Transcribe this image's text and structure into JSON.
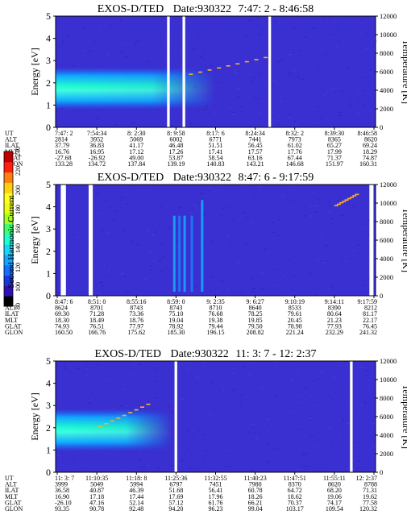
{
  "colors": {
    "background": "#3a2fd0",
    "noise": "#2a20b8",
    "text": "#000000",
    "gap": "#ffffff",
    "colorbar": [
      "#000000",
      "#3010b0",
      "#1838e0",
      "#1470ff",
      "#10a8ff",
      "#10d8ff",
      "#20ffd0",
      "#40ff70",
      "#a0ff20",
      "#e8ff10",
      "#ffff20",
      "#ffd010",
      "#ff8010",
      "#ff2010",
      "#c00000"
    ]
  },
  "colorbar": {
    "label": "Second Harmonic Current",
    "ticks": [
      "80",
      "100",
      "120",
      "140",
      "160",
      "180",
      "200",
      "220",
      "240"
    ]
  },
  "chart_data": [
    {
      "type": "heatmap",
      "title": "EXOS-D/TED",
      "date": "Date:930322",
      "time_range": "7:47: 2 - 8:46:58",
      "ylabel": "Energy [eV]",
      "y2label": "Temperature [K]",
      "ylim": [
        0,
        5
      ],
      "y2lim": [
        0,
        12000
      ],
      "yticks": [
        "0",
        "1",
        "2",
        "3",
        "4",
        "5"
      ],
      "y2ticks": [
        "0",
        "2000",
        "4000",
        "6000",
        "8000",
        "10000",
        "12000"
      ],
      "x_range_min": [
        0,
        60
      ],
      "gaps_min": [
        [
          20.9,
          21.4
        ],
        [
          23.8,
          24.3
        ],
        [
          39.9,
          40.4
        ]
      ],
      "beam": {
        "energy_center_ev": 1.75,
        "energy_halfwidth_ev": 0.6,
        "extent_min": [
          0,
          30
        ]
      },
      "temperature_trace": {
        "x_min": [
          25,
          39
        ],
        "temp_k": [
          5800,
          7600
        ]
      },
      "table": {
        "row_labels": [
          "UT",
          "ALT",
          "ILAT",
          "MLT",
          "GLAT",
          "GLON"
        ],
        "columns": [
          [
            "7:47: 2",
            "2814",
            "37.79",
            "16.76",
            "-27.68",
            "133.28"
          ],
          [
            "7:54:34",
            "3952",
            "36.83",
            "16.95",
            "-26.92",
            "134.72"
          ],
          [
            "8: 2:30",
            "5069",
            "41.17",
            "17.12",
            "49.00",
            "137.84"
          ],
          [
            "8: 9:58",
            "6002",
            "46.48",
            "17.26",
            "53.87",
            "139.19"
          ],
          [
            "8:17: 6",
            "6771",
            "51.51",
            "17.41",
            "58.54",
            "140.83"
          ],
          [
            "8:24:34",
            "7441",
            "56.45",
            "17.57",
            "63.16",
            "143.21"
          ],
          [
            "8:32: 2",
            "7973",
            "61.02",
            "17.76",
            "67.44",
            "146.68"
          ],
          [
            "8:39:30",
            "8365",
            "65.27",
            "17.99",
            "71.37",
            "151.97"
          ],
          [
            "8:46:58",
            "8620",
            "69.24",
            "18.29",
            "74.87",
            "160.31"
          ]
        ]
      }
    },
    {
      "type": "heatmap",
      "title": "EXOS-D/TED",
      "date": "Date:930322",
      "time_range": "8:47: 6 - 9:17:59",
      "ylabel": "Energy [eV]",
      "y2label": "Temperature [K]",
      "ylim": [
        0,
        5
      ],
      "y2lim": [
        0,
        12000
      ],
      "yticks": [
        "0",
        "1",
        "2",
        "3",
        "4",
        "5"
      ],
      "y2ticks": [
        "0",
        "2000",
        "4000",
        "6000",
        "8000",
        "10000",
        "12000"
      ],
      "x_range_min": [
        0,
        31
      ],
      "gaps_min": [
        [
          0.5,
          1.0
        ],
        [
          3.2,
          3.6
        ],
        [
          30.4,
          30.8
        ]
      ],
      "bright_columns_min": [
        11.5,
        12.0,
        12.5,
        13.2,
        14.2
      ],
      "temperature_trace": {
        "x_min": [
          27,
          29
        ],
        "temp_k": [
          9800,
          11000
        ]
      },
      "table": {
        "row_labels": [
          "UT",
          "ALT",
          "ILAT",
          "MLT",
          "GLAT",
          "GLON"
        ],
        "columns": [
          [
            "8:47: 6",
            "8624",
            "69.30",
            "18.30",
            "74.93",
            "160.50"
          ],
          [
            "8:51: 0",
            "8701",
            "71.28",
            "18.49",
            "76.51",
            "166.76"
          ],
          [
            "8:55:16",
            "8743",
            "73.36",
            "18.76",
            "77.97",
            "175.62"
          ],
          [
            "8:59: 0",
            "8743",
            "75.10",
            "19.04",
            "78.92",
            "185.30"
          ],
          [
            "9: 2:35",
            "8710",
            "76.68",
            "19.38",
            "79.44",
            "196.15"
          ],
          [
            "9: 6:27",
            "8640",
            "78.25",
            "19.85",
            "79.50",
            "208.82"
          ],
          [
            "9:10:19",
            "8533",
            "79.61",
            "20.45",
            "78.98",
            "221.24"
          ],
          [
            "9:14:11",
            "8390",
            "80.64",
            "21.23",
            "77.93",
            "232.29"
          ],
          [
            "9:17:59",
            "8212",
            "81.17",
            "22.17",
            "76.45",
            "241.32"
          ]
        ]
      }
    },
    {
      "type": "heatmap",
      "title": "EXOS-D/TED",
      "date": "Date:930322",
      "time_range": "11: 3: 7 - 12: 2:37",
      "ylabel": "Energy [eV]",
      "y2label": "Temperature [K]",
      "ylim": [
        0,
        5
      ],
      "y2lim": [
        0,
        12000
      ],
      "yticks": [
        "0",
        "1",
        "2",
        "3",
        "4",
        "5"
      ],
      "y2ticks": [
        "0",
        "2000",
        "4000",
        "6000",
        "8000",
        "10000",
        "12000"
      ],
      "x_range_min": [
        0,
        60
      ],
      "gaps_min": [
        [
          22.3,
          22.8
        ],
        [
          55.2,
          55.7
        ]
      ],
      "beam": {
        "energy_center_ev": 1.9,
        "energy_halfwidth_ev": 0.6,
        "extent_min": [
          0,
          22
        ]
      },
      "temperature_trace": {
        "x_min": [
          8,
          17
        ],
        "temp_k": [
          5000,
          7400
        ]
      },
      "table": {
        "row_labels": [
          "UT",
          "ALT",
          "ILAT",
          "MLT",
          "GLAT",
          "GLON"
        ],
        "columns": [
          [
            "11: 3: 7",
            "3999",
            "36.58",
            "16.90",
            "-26.10",
            "93.35"
          ],
          [
            "11:10:35",
            "5049",
            "40.87",
            "17.18",
            "47.16",
            "90.78"
          ],
          [
            "11:18: 8",
            "5994",
            "46.39",
            "17.44",
            "52.14",
            "92.48"
          ],
          [
            "11:25:36",
            "6797",
            "51.68",
            "17.69",
            "57.12",
            "94.20"
          ],
          [
            "11:32:55",
            "7451",
            "56.41",
            "17.96",
            "61.76",
            "96.23"
          ],
          [
            "11:40:23",
            "7980",
            "60.78",
            "18.26",
            "66.21",
            "99.04"
          ],
          [
            "11:47:51",
            "8370",
            "64.72",
            "18.62",
            "70.37",
            "103.17"
          ],
          [
            "11:55:11",
            "8620",
            "68.20",
            "19.06",
            "74.17",
            "109.54"
          ],
          [
            "12: 2:37",
            "8788",
            "71.31",
            "19.62",
            "77.58",
            "120.32"
          ]
        ]
      }
    }
  ]
}
